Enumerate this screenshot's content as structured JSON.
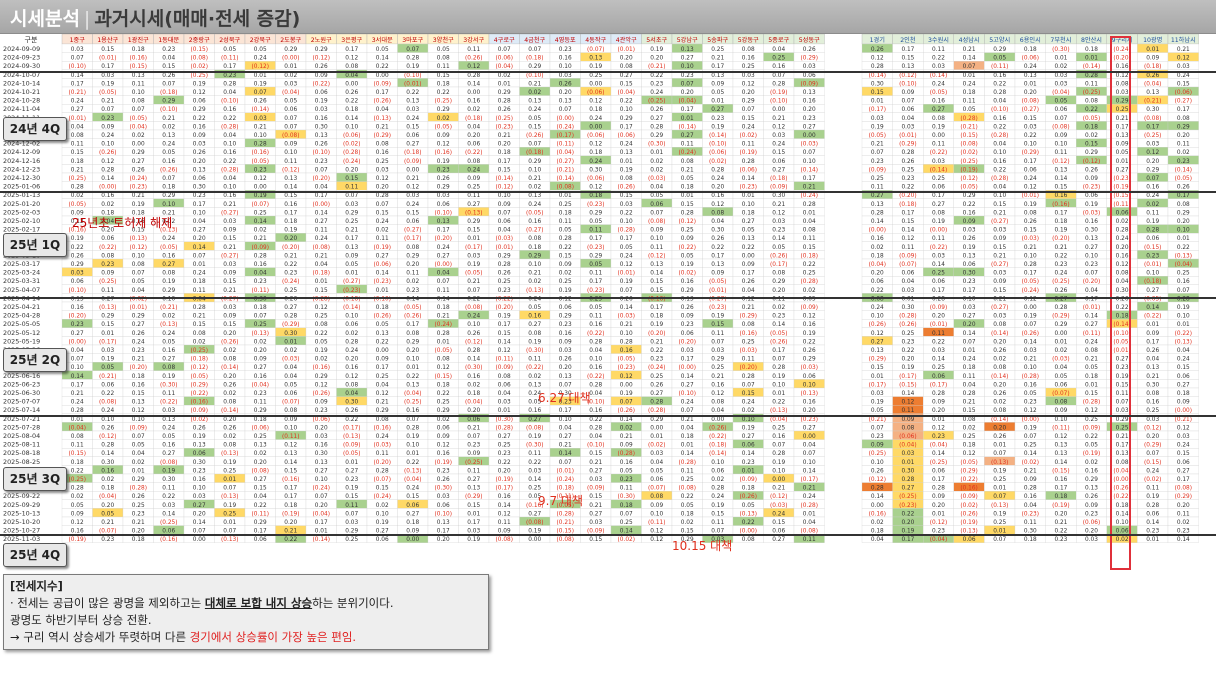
{
  "header": {
    "title_main": "시세분석",
    "title_sep": "|",
    "title_sub": "과거시세(매매·전세 증감)"
  },
  "table": {
    "corner_label": "구분",
    "columns_left": [
      "1중구",
      "1용산구",
      "1광진구",
      "1동대문",
      "2중랑구",
      "2성북구",
      "2강북구",
      "2도봉구",
      "2노원구",
      "3은평구",
      "3서대문",
      "3마포구",
      "3양천구",
      "3강서구",
      "4구로구",
      "4금천구",
      "4영등포",
      "4동작구",
      "4관악구",
      "5서초구",
      "5강남구",
      "5송파구",
      "5강동구",
      "5종로구",
      "5성동구"
    ],
    "columns_right": [
      "1경기",
      "2인천",
      "3수원시",
      "4성남시",
      "5고양시",
      "6용인시",
      "7부천시",
      "8안산시",
      "9구리시",
      "10광명",
      "11하남시"
    ],
    "dates": [
      "2024-09-09",
      "2024-09-23",
      "2024-09-30",
      "2024-10-07",
      "2024-10-14",
      "2024-10-21",
      "2024-10-28",
      "2024-11-04",
      "2024-11-11",
      "2024-11-18",
      "2024-11-25",
      "2024-12-02",
      "2024-12-09",
      "2024-12-16",
      "2024-12-23",
      "2024-12-30",
      "2025-01-06",
      "2025-01-13",
      "2025-01-20",
      "2025-02-03",
      "2025-02-10",
      "2025-02-17",
      "2025-02-24",
      "2025-03-03",
      "2025-03-10",
      "2025-03-17",
      "2025-03-24",
      "2025-03-31",
      "2025-04-07",
      "2025-04-14",
      "2025-04-21",
      "2025-04-28",
      "2025-05-05",
      "2025-05-12",
      "2025-05-19",
      "2025-05-26",
      "2025-06-02",
      "2025-06-09",
      "2025-06-16",
      "2025-06-23",
      "2025-06-30",
      "2025-07-07",
      "2025-07-14",
      "2025-07-21",
      "2025-07-28",
      "2025-08-04",
      "2025-08-11",
      "2025-08-18",
      "2025-08-25",
      "2025-09-01",
      "2025-09-08",
      "2025-09-15",
      "2025-09-22",
      "2025-09-29",
      "2025-10-13",
      "2025-10-20",
      "2025-10-27",
      "2025-11-03"
    ]
  },
  "quarter_labels": [
    "24년 4Q",
    "25년 1Q",
    "25년 2Q",
    "25년 3Q",
    "25년 4Q"
  ],
  "annotations": {
    "winter": "25년초 토허제 해제",
    "jun27": "6.27 대책",
    "sep7": "9.7 대책",
    "oct15": "10.15 대책"
  },
  "summary": {
    "heading": "[전세지수]",
    "line1_pre": "· 전세는 공급이 많은 광명을 제외하고는 ",
    "line1_em": "대체로 보합 내지 상승",
    "line1_post": "하는 분위기이다.",
    "line2": "광명도 하반기부터 상승 전환.",
    "line3_pre": "→ 구리 역시 상승세가 뚜렷하며 다른 ",
    "line3_red": "경기에서 상승률이 가장 높은 편임."
  },
  "colors": {
    "green": "#a9d18e",
    "yellow": "#ffd966",
    "orange": "#f4b183",
    "dark_orange": "#ed7d31",
    "pink": "#f8cbad",
    "negative_text": "#e0301e",
    "highlight_box": "#e0303a"
  }
}
